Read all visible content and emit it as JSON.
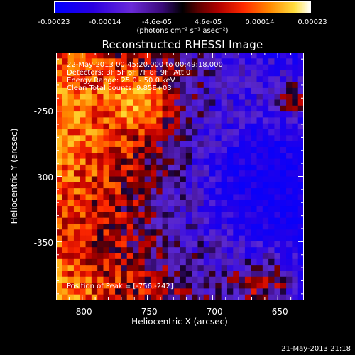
{
  "chart_data": {
    "type": "heatmap",
    "title": "Reconstructed RHESSI Image",
    "xlabel": "Heliocentric X (arcsec)",
    "ylabel": "Heliocentric Y (arcsec)",
    "xlim": [
      -820,
      -630
    ],
    "ylim": [
      -395,
      -205
    ],
    "x_ticks": [
      -800,
      -750,
      -700,
      -650
    ],
    "y_ticks": [
      -250,
      -300,
      -350
    ],
    "colorbar": {
      "ticks": [
        "-0.00023",
        "-0.00014",
        "-4.6e-05",
        "4.6e-05",
        "0.00014",
        "0.00023"
      ],
      "range": [
        -0.00023,
        0.00023
      ],
      "units": "(photons cm⁻² s⁻¹ asec⁻²)"
    },
    "annotations": [
      "22-May-2013 00:45:20.000 to 00:49:18.000",
      "Detectors: 3F 5F 6F 7F 8F 9F, Att 0",
      "Energy Range: 25.0 - 50.0 keV",
      "Clean     Total counts: 9.85E+03"
    ],
    "peak_label": "Position of Peak = [-756,-242]",
    "peak": [
      -756,
      -242
    ],
    "grid_size": 42
  },
  "timestamp": "21-May-2013 21:18"
}
